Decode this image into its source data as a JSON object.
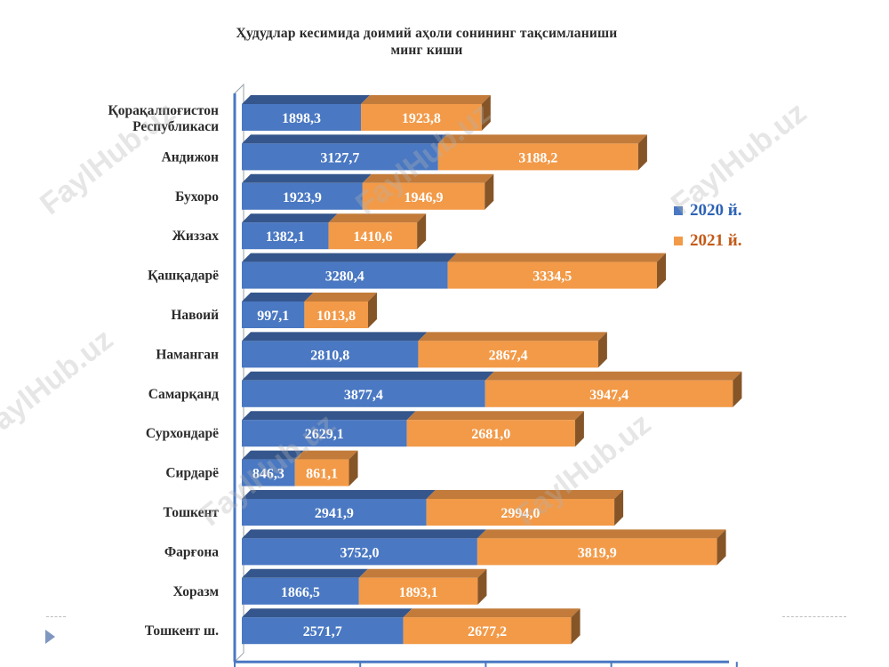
{
  "title": {
    "line1": "Ҳудудлар кесимида доимий аҳоли сонининг тақсимланиши",
    "line2": "минг киши"
  },
  "watermark": "FaylHub.uz",
  "colors": {
    "series_2020": "#4a78c2",
    "series_2021": "#f29a48",
    "label_2020": "#2e63b5",
    "label_2021": "#c45a17"
  },
  "chart_data": {
    "type": "bar",
    "orientation": "horizontal",
    "stacked": true,
    "three_d": true,
    "categories": [
      "Қорақалпоғистон Республикаси",
      "Андижон",
      "Бухоро",
      "Жиззах",
      "Қашқадарё",
      "Навоий",
      "Наманган",
      "Самарқанд",
      "Сурхондарё",
      "Сирдарё",
      "Тошкент",
      "Фарғона",
      "Хоразм",
      "Тошкент ш."
    ],
    "series": [
      {
        "name": "2020 й.",
        "values": [
          1898.3,
          3127.7,
          1923.9,
          1382.1,
          3280.4,
          997.1,
          2810.8,
          3877.4,
          2629.1,
          846.3,
          2941.9,
          3752.0,
          1866.5,
          2571.7
        ],
        "data_labels": [
          "1898,3",
          "3127,7",
          "1923,9",
          "1382,1",
          "3280,4",
          "997,1",
          "2810,8",
          "3877,4",
          "2629,1",
          "846,3",
          "2941,9",
          "3752,0",
          "1866,5",
          "2571,7"
        ]
      },
      {
        "name": "2021 й.",
        "values": [
          1923.8,
          3188.2,
          1946.9,
          1410.6,
          3334.5,
          1013.8,
          2867.4,
          3947.4,
          2681.0,
          861.1,
          2994.0,
          3819.9,
          1893.1,
          2677.2
        ],
        "data_labels": [
          "1923,8",
          "3188,2",
          "1946,9",
          "1410,6",
          "3334,5",
          "1013,8",
          "2867,4",
          "3947,4",
          "2681,0",
          "861,1",
          "2994,0",
          "3819,9",
          "1893,1",
          "2677,2"
        ]
      }
    ],
    "xlim": [
      0,
      8000
    ],
    "grid": false,
    "legend_position": "right"
  }
}
